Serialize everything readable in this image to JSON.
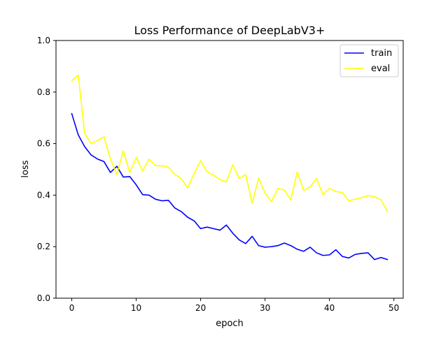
{
  "chart_data": {
    "type": "line",
    "title": "Loss Performance of DeepLabV3+",
    "xlabel": "epoch",
    "ylabel": "loss",
    "xlim": [
      -2.45,
      51.45
    ],
    "ylim": [
      0.0,
      1.0
    ],
    "x_ticks": [
      0,
      10,
      20,
      30,
      40,
      50
    ],
    "y_ticks": [
      0.0,
      0.2,
      0.4,
      0.6,
      0.8,
      1.0
    ],
    "x_tick_labels": [
      "0",
      "10",
      "20",
      "30",
      "40",
      "50"
    ],
    "y_tick_labels": [
      "0.0",
      "0.2",
      "0.4",
      "0.6",
      "0.8",
      "1.0"
    ],
    "grid": false,
    "legend_position": "upper right",
    "x": [
      0,
      1,
      2,
      3,
      4,
      5,
      6,
      7,
      8,
      9,
      10,
      11,
      12,
      13,
      14,
      15,
      16,
      17,
      18,
      19,
      20,
      21,
      22,
      23,
      24,
      25,
      26,
      27,
      28,
      29,
      30,
      31,
      32,
      33,
      34,
      35,
      36,
      37,
      38,
      39,
      40,
      41,
      42,
      43,
      44,
      45,
      46,
      47,
      48,
      49
    ],
    "series": [
      {
        "name": "train",
        "color": "#0000ff",
        "values": [
          0.716,
          0.634,
          0.588,
          0.556,
          0.54,
          0.53,
          0.488,
          0.512,
          0.47,
          0.472,
          0.44,
          0.402,
          0.4,
          0.384,
          0.378,
          0.38,
          0.35,
          0.336,
          0.314,
          0.3,
          0.27,
          0.276,
          0.27,
          0.264,
          0.284,
          0.252,
          0.226,
          0.212,
          0.24,
          0.204,
          0.198,
          0.2,
          0.204,
          0.214,
          0.204,
          0.19,
          0.182,
          0.198,
          0.176,
          0.166,
          0.168,
          0.188,
          0.162,
          0.156,
          0.17,
          0.174,
          0.176,
          0.15,
          0.158,
          0.15
        ]
      },
      {
        "name": "eval",
        "color": "#ffff00",
        "values": [
          0.844,
          0.866,
          0.64,
          0.6,
          0.612,
          0.626,
          0.54,
          0.48,
          0.572,
          0.488,
          0.546,
          0.494,
          0.54,
          0.514,
          0.514,
          0.508,
          0.48,
          0.464,
          0.428,
          0.484,
          0.534,
          0.49,
          0.478,
          0.46,
          0.452,
          0.518,
          0.464,
          0.48,
          0.368,
          0.466,
          0.408,
          0.374,
          0.426,
          0.42,
          0.382,
          0.49,
          0.418,
          0.432,
          0.464,
          0.402,
          0.426,
          0.414,
          0.41,
          0.378,
          0.384,
          0.39,
          0.398,
          0.394,
          0.382,
          0.336
        ]
      }
    ]
  }
}
